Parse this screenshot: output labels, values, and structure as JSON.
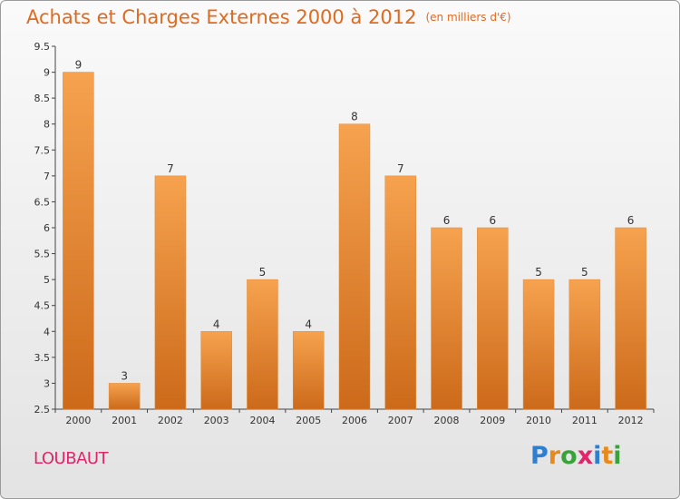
{
  "title": "Achats et Charges Externes 2000 à 2012",
  "subtitle": "(en milliers d'€)",
  "place": "LOUBAUT",
  "logo": {
    "text": "Proxiti",
    "letters": [
      {
        "ch": "P",
        "color": "#2f7fd0"
      },
      {
        "ch": "r",
        "color": "#e88a1a"
      },
      {
        "ch": "o",
        "color": "#3aa23a"
      },
      {
        "ch": "x",
        "color": "#e0266a"
      },
      {
        "ch": "i",
        "color": "#2f7fd0"
      },
      {
        "ch": "t",
        "color": "#e88a1a"
      },
      {
        "ch": "i",
        "color": "#3aa23a"
      }
    ]
  },
  "colors": {
    "title": "#e06a1e",
    "bar_light": "#f6a24e",
    "bar_dark": "#cc6a1a",
    "place": "#e0266a"
  },
  "chart_data": {
    "type": "bar",
    "title": "Achats et Charges Externes 2000 à 2012",
    "subtitle": "(en milliers d'€)",
    "categories": [
      "2000",
      "2001",
      "2002",
      "2003",
      "2004",
      "2005",
      "2006",
      "2007",
      "2008",
      "2009",
      "2010",
      "2011",
      "2012"
    ],
    "values": [
      9,
      3,
      7,
      4,
      5,
      4,
      8,
      7,
      6,
      6,
      5,
      5,
      6
    ],
    "data_labels": [
      "9",
      "3",
      "7",
      "4",
      "5",
      "4",
      "8",
      "7",
      "6",
      "6",
      "5",
      "5",
      "6"
    ],
    "ylim": [
      2.5,
      9.5
    ],
    "yticks": [
      2.5,
      3,
      3.5,
      4,
      4.5,
      5,
      5.5,
      6,
      6.5,
      7,
      7.5,
      8,
      8.5,
      9,
      9.5
    ],
    "ytick_labels": [
      "2.5",
      "3",
      "3.5",
      "4",
      "4.5",
      "5",
      "5.5",
      "6",
      "6.5",
      "7",
      "7.5",
      "8",
      "8.5",
      "9",
      "9.5"
    ],
    "grid": false,
    "xlabel": "",
    "ylabel": ""
  }
}
